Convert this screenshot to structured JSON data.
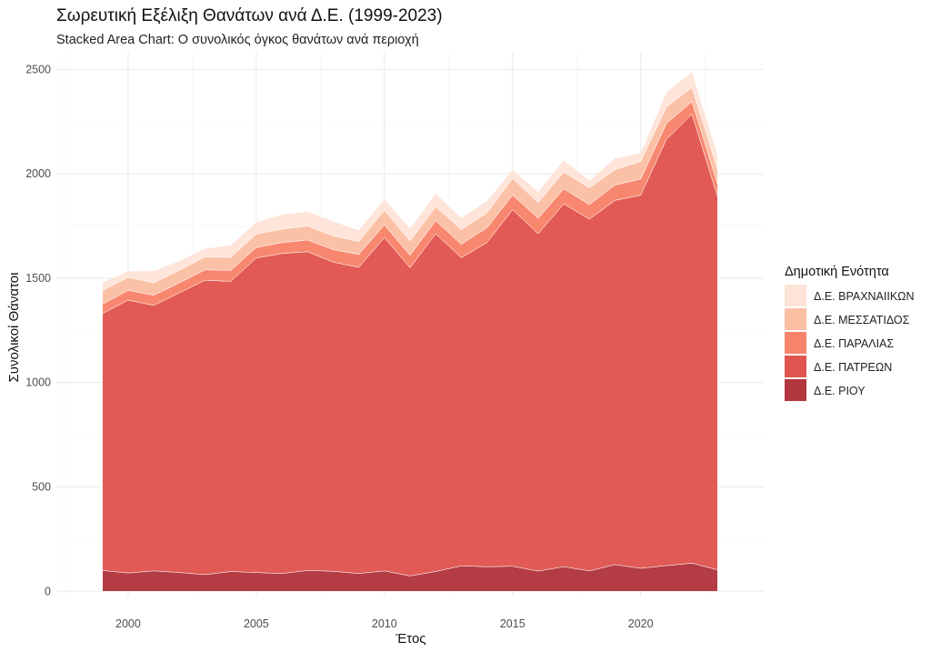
{
  "chart_data": {
    "type": "area",
    "stacked": true,
    "title": "Σωρευτική Εξέλιξη Θανάτων ανά Δ.Ε. (1999-2023)",
    "subtitle": "Stacked Area Chart: Ο συνολικός όγκος θανάτων ανά περιοχή",
    "xlabel": "Έτος",
    "ylabel": "Συνολικοί Θάνατοι",
    "xlim": [
      1997.2,
      2024.8
    ],
    "ylim": [
      -25,
      2580
    ],
    "x_ticks": [
      "2000",
      "2005",
      "2010",
      "2015",
      "2020"
    ],
    "y_ticks": [
      "0",
      "500",
      "1000",
      "1500",
      "2000",
      "2500"
    ],
    "grid": true,
    "legend": {
      "title": "Δημοτική Ενότητα",
      "placement": "right"
    },
    "x": [
      1999,
      2000,
      2001,
      2002,
      2003,
      2004,
      2005,
      2006,
      2007,
      2008,
      2009,
      2010,
      2011,
      2012,
      2013,
      2014,
      2015,
      2016,
      2017,
      2018,
      2019,
      2020,
      2021,
      2022,
      2023
    ],
    "series": [
      {
        "name": "Δ.Ε. ΡΙΟΥ",
        "color": "#b2373f",
        "values": [
          100,
          88,
          98,
          90,
          80,
          95,
          90,
          85,
          100,
          96,
          85,
          98,
          74,
          95,
          122,
          118,
          120,
          97,
          118,
          98,
          128,
          110,
          123,
          135,
          103
        ]
      },
      {
        "name": "Δ.Ε. ΠΑΤΡΕΩΝ",
        "color": "#e05550",
        "values": [
          1230,
          1307,
          1272,
          1340,
          1410,
          1390,
          1507,
          1533,
          1527,
          1481,
          1467,
          1597,
          1476,
          1618,
          1476,
          1553,
          1708,
          1616,
          1738,
          1685,
          1745,
          1788,
          2042,
          2151,
          1787
        ]
      },
      {
        "name": "Δ.Ε. ΠΑΡΑΛΙΑΣ",
        "color": "#f7846a",
        "values": [
          45,
          47,
          48,
          48,
          50,
          52,
          50,
          52,
          56,
          60,
          62,
          60,
          60,
          62,
          65,
          70,
          70,
          74,
          72,
          70,
          73,
          77,
          75,
          60,
          60
        ]
      },
      {
        "name": "Δ.Ε. ΜΕΣΣΑΤΙΔΟΣ",
        "color": "#fbbfa4",
        "values": [
          65,
          62,
          60,
          60,
          62,
          63,
          65,
          65,
          67,
          66,
          62,
          70,
          68,
          67,
          70,
          72,
          80,
          75,
          80,
          80,
          74,
          85,
          80,
          67,
          70
        ]
      },
      {
        "name": "Δ.Ε. ΒΡΑΧΝΑΙΙΚΩΝ",
        "color": "#fee3d8",
        "values": [
          40,
          30,
          57,
          45,
          40,
          58,
          57,
          70,
          70,
          70,
          54,
          55,
          60,
          63,
          57,
          57,
          42,
          53,
          58,
          35,
          55,
          40,
          72,
          75,
          70
        ]
      }
    ]
  }
}
